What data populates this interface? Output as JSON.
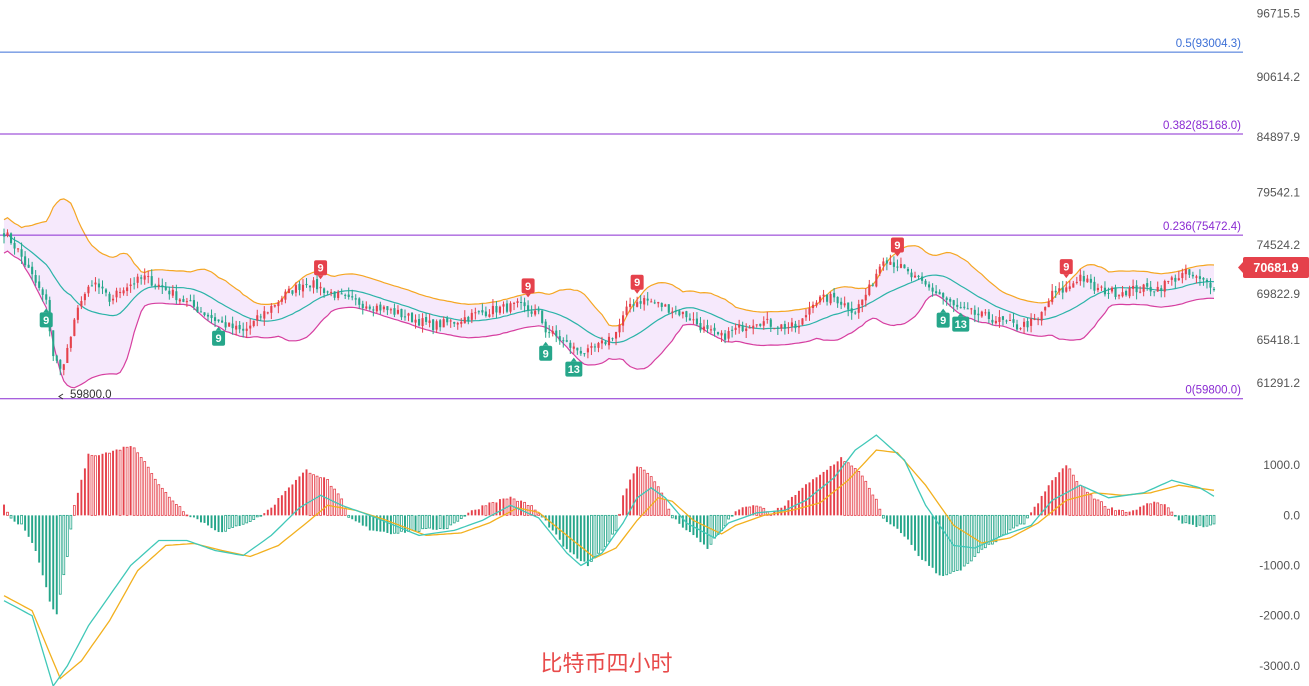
{
  "caption": "比特币四小时",
  "current_price_label": "70681.9",
  "low_marker_label": "59800.0",
  "colors": {
    "up": "#e5414b",
    "down": "#26a68a",
    "band_upper": "#f5a623",
    "band_lower": "#d63fa0",
    "band_fill": "#f3e1fb",
    "ma_mid": "#2bb3a8",
    "fib_05": "#3b6fd6",
    "fib_other": "#8a2bd2",
    "fib_text_05": "#3b6fd6",
    "fib_text_other": "#8a2bd2",
    "macd_dif": "#40c8b8",
    "macd_dea": "#f2b01e"
  },
  "chart_data": [
    {
      "type": "candlestick",
      "name": "price",
      "y_ticks": [
        "96715.5",
        "90614.2",
        "84897.9",
        "79542.1",
        "74524.2",
        "69822.9",
        "65418.1",
        "61291.2"
      ],
      "ylim": [
        59200,
        98000
      ],
      "fib_levels": [
        {
          "label": "0.5(93004.3)",
          "value": 93004.3
        },
        {
          "label": "0.382(85168.0)",
          "value": 85168.0
        },
        {
          "label": "0.236(75472.4)",
          "value": 75472.4
        },
        {
          "label": "0(59800.0)",
          "value": 59800.0
        }
      ],
      "close_anchor": [
        [
          0,
          75800
        ],
        [
          4,
          74000
        ],
        [
          8,
          71500
        ],
        [
          12,
          69000
        ],
        [
          14,
          64000
        ],
        [
          16,
          62500
        ],
        [
          18,
          64500
        ],
        [
          22,
          69500
        ],
        [
          26,
          70800
        ],
        [
          30,
          69200
        ],
        [
          34,
          70500
        ],
        [
          40,
          71400
        ],
        [
          46,
          70300
        ],
        [
          52,
          69000
        ],
        [
          58,
          67800
        ],
        [
          62,
          67000
        ],
        [
          68,
          66200
        ],
        [
          74,
          68000
        ],
        [
          80,
          69800
        ],
        [
          86,
          71000
        ],
        [
          92,
          70100
        ],
        [
          98,
          69200
        ],
        [
          104,
          68800
        ],
        [
          110,
          68200
        ],
        [
          116,
          67500
        ],
        [
          122,
          66800
        ],
        [
          128,
          67200
        ],
        [
          134,
          67900
        ],
        [
          140,
          68400
        ],
        [
          146,
          68700
        ],
        [
          152,
          67900
        ],
        [
          154,
          66400
        ],
        [
          158,
          65500
        ],
        [
          162,
          64600
        ],
        [
          166,
          64200
        ],
        [
          170,
          65000
        ],
        [
          174,
          66200
        ],
        [
          178,
          68900
        ],
        [
          182,
          69300
        ],
        [
          188,
          68600
        ],
        [
          194,
          67800
        ],
        [
          200,
          66200
        ],
        [
          204,
          65700
        ],
        [
          208,
          66400
        ],
        [
          214,
          67300
        ],
        [
          220,
          66800
        ],
        [
          226,
          66600
        ],
        [
          230,
          69200
        ],
        [
          236,
          69500
        ],
        [
          242,
          68200
        ],
        [
          246,
          70300
        ],
        [
          250,
          73400
        ],
        [
          254,
          72600
        ],
        [
          258,
          71500
        ],
        [
          262,
          70600
        ],
        [
          266,
          69800
        ],
        [
          270,
          68600
        ],
        [
          276,
          67900
        ],
        [
          282,
          67400
        ],
        [
          288,
          66700
        ],
        [
          294,
          67300
        ],
        [
          298,
          69800
        ],
        [
          302,
          70300
        ],
        [
          306,
          71600
        ],
        [
          310,
          70300
        ],
        [
          316,
          70000
        ],
        [
          322,
          70300
        ],
        [
          328,
          70400
        ],
        [
          332,
          71200
        ],
        [
          336,
          71800
        ],
        [
          340,
          71100
        ],
        [
          344,
          70700
        ]
      ],
      "annotations": [
        {
          "text": "9",
          "i": 12,
          "kind": "down"
        },
        {
          "text": "9",
          "i": 61,
          "kind": "down"
        },
        {
          "text": "9",
          "i": 90,
          "kind": "up"
        },
        {
          "text": "9",
          "i": 149,
          "kind": "up"
        },
        {
          "text": "9",
          "i": 154,
          "kind": "down"
        },
        {
          "text": "13",
          "i": 162,
          "kind": "down"
        },
        {
          "text": "9",
          "i": 180,
          "kind": "up"
        },
        {
          "text": "9",
          "i": 254,
          "kind": "up"
        },
        {
          "text": "9",
          "i": 267,
          "kind": "down"
        },
        {
          "text": "13",
          "i": 272,
          "kind": "down"
        },
        {
          "text": "9",
          "i": 302,
          "kind": "up"
        }
      ]
    },
    {
      "type": "bar",
      "name": "MACD",
      "y_ticks": [
        "1000.0",
        "0.0",
        "-1000.0",
        "-2000.0",
        "-3000.0"
      ],
      "ylim": [
        -3400,
        1900
      ],
      "hist_anchor": [
        [
          0,
          220
        ],
        [
          2,
          -50
        ],
        [
          5,
          -200
        ],
        [
          9,
          -700
        ],
        [
          13,
          -1700
        ],
        [
          15,
          -2000
        ],
        [
          18,
          -800
        ],
        [
          20,
          200
        ],
        [
          24,
          1200
        ],
        [
          30,
          1250
        ],
        [
          36,
          1400
        ],
        [
          40,
          1100
        ],
        [
          44,
          600
        ],
        [
          48,
          300
        ],
        [
          52,
          30
        ],
        [
          56,
          -120
        ],
        [
          62,
          -350
        ],
        [
          68,
          -160
        ],
        [
          72,
          -50
        ],
        [
          76,
          150
        ],
        [
          80,
          500
        ],
        [
          86,
          900
        ],
        [
          92,
          700
        ],
        [
          96,
          300
        ],
        [
          98,
          -50
        ],
        [
          104,
          -280
        ],
        [
          110,
          -350
        ],
        [
          118,
          -300
        ],
        [
          126,
          -250
        ],
        [
          132,
          50
        ],
        [
          138,
          250
        ],
        [
          144,
          360
        ],
        [
          150,
          180
        ],
        [
          154,
          -120
        ],
        [
          160,
          -700
        ],
        [
          166,
          -1000
        ],
        [
          170,
          -700
        ],
        [
          174,
          -300
        ],
        [
          176,
          400
        ],
        [
          180,
          1000
        ],
        [
          184,
          800
        ],
        [
          188,
          300
        ],
        [
          190,
          -40
        ],
        [
          196,
          -400
        ],
        [
          200,
          -650
        ],
        [
          204,
          -300
        ],
        [
          208,
          100
        ],
        [
          214,
          200
        ],
        [
          218,
          40
        ],
        [
          222,
          200
        ],
        [
          226,
          500
        ],
        [
          232,
          800
        ],
        [
          238,
          1150
        ],
        [
          244,
          800
        ],
        [
          248,
          300
        ],
        [
          250,
          -80
        ],
        [
          256,
          -400
        ],
        [
          260,
          -800
        ],
        [
          266,
          -1200
        ],
        [
          272,
          -1100
        ],
        [
          278,
          -700
        ],
        [
          284,
          -400
        ],
        [
          290,
          -150
        ],
        [
          294,
          250
        ],
        [
          298,
          700
        ],
        [
          302,
          1000
        ],
        [
          306,
          600
        ],
        [
          310,
          350
        ],
        [
          314,
          150
        ],
        [
          320,
          70
        ],
        [
          326,
          250
        ],
        [
          330,
          220
        ],
        [
          334,
          -120
        ],
        [
          340,
          -220
        ],
        [
          344,
          -200
        ]
      ],
      "dif_anchor": [
        [
          0,
          -1700
        ],
        [
          8,
          -2000
        ],
        [
          14,
          -3400
        ],
        [
          18,
          -3000
        ],
        [
          24,
          -2200
        ],
        [
          30,
          -1600
        ],
        [
          36,
          -1000
        ],
        [
          44,
          -500
        ],
        [
          52,
          -500
        ],
        [
          60,
          -700
        ],
        [
          68,
          -800
        ],
        [
          76,
          -400
        ],
        [
          84,
          150
        ],
        [
          90,
          400
        ],
        [
          96,
          200
        ],
        [
          104,
          0
        ],
        [
          118,
          -400
        ],
        [
          128,
          -300
        ],
        [
          136,
          -100
        ],
        [
          144,
          200
        ],
        [
          152,
          -50
        ],
        [
          160,
          -750
        ],
        [
          164,
          -1000
        ],
        [
          170,
          -750
        ],
        [
          176,
          -150
        ],
        [
          180,
          350
        ],
        [
          184,
          550
        ],
        [
          188,
          350
        ],
        [
          194,
          -150
        ],
        [
          202,
          -450
        ],
        [
          206,
          -150
        ],
        [
          214,
          50
        ],
        [
          222,
          100
        ],
        [
          228,
          300
        ],
        [
          236,
          750
        ],
        [
          242,
          1300
        ],
        [
          248,
          1600
        ],
        [
          256,
          1100
        ],
        [
          262,
          200
        ],
        [
          270,
          -600
        ],
        [
          276,
          -650
        ],
        [
          284,
          -400
        ],
        [
          292,
          -200
        ],
        [
          298,
          300
        ],
        [
          306,
          600
        ],
        [
          314,
          350
        ],
        [
          324,
          450
        ],
        [
          332,
          700
        ],
        [
          340,
          550
        ],
        [
          344,
          380
        ]
      ],
      "dea_anchor": [
        [
          0,
          -1600
        ],
        [
          8,
          -1900
        ],
        [
          16,
          -3250
        ],
        [
          22,
          -2900
        ],
        [
          30,
          -2100
        ],
        [
          38,
          -1100
        ],
        [
          46,
          -600
        ],
        [
          54,
          -560
        ],
        [
          62,
          -700
        ],
        [
          70,
          -820
        ],
        [
          78,
          -600
        ],
        [
          86,
          -150
        ],
        [
          92,
          200
        ],
        [
          100,
          100
        ],
        [
          108,
          -80
        ],
        [
          120,
          -400
        ],
        [
          130,
          -350
        ],
        [
          138,
          -150
        ],
        [
          146,
          150
        ],
        [
          152,
          60
        ],
        [
          160,
          -400
        ],
        [
          168,
          -850
        ],
        [
          174,
          -650
        ],
        [
          180,
          -100
        ],
        [
          186,
          350
        ],
        [
          190,
          280
        ],
        [
          196,
          -100
        ],
        [
          204,
          -370
        ],
        [
          208,
          -200
        ],
        [
          216,
          0
        ],
        [
          224,
          100
        ],
        [
          232,
          250
        ],
        [
          240,
          700
        ],
        [
          248,
          1300
        ],
        [
          254,
          1250
        ],
        [
          262,
          600
        ],
        [
          270,
          -200
        ],
        [
          278,
          -550
        ],
        [
          286,
          -450
        ],
        [
          294,
          -150
        ],
        [
          302,
          300
        ],
        [
          310,
          450
        ],
        [
          318,
          400
        ],
        [
          326,
          450
        ],
        [
          334,
          600
        ],
        [
          344,
          500
        ]
      ]
    }
  ]
}
